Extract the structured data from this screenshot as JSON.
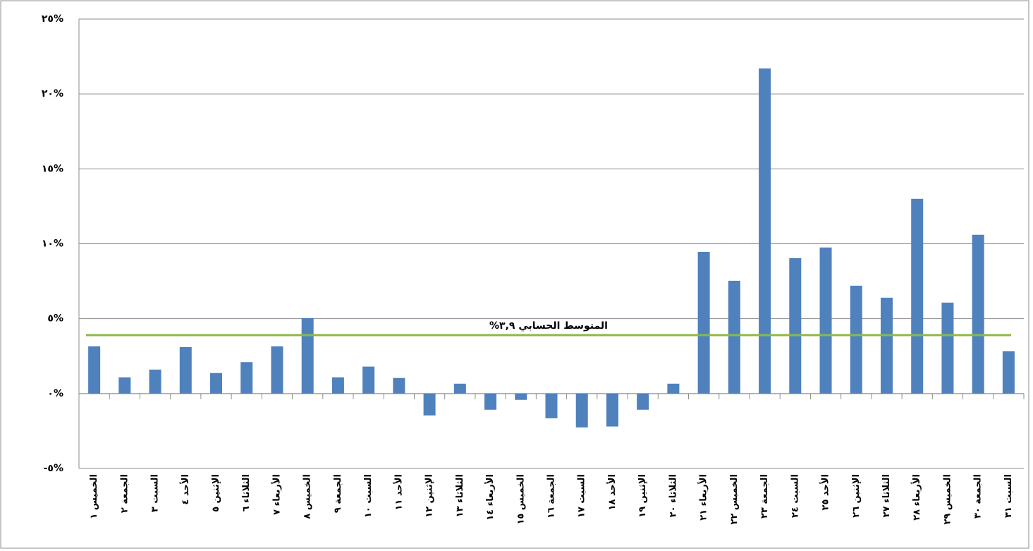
{
  "chart_data": {
    "type": "bar",
    "categories": [
      "الخميس ١",
      "الجمعة ٢",
      "السبت ٣",
      "الأحد ٤",
      "الإثنين ٥",
      "الثلاثاء ٦",
      "الأربعاء ٧",
      "الخميس ٨",
      "الجمعة ٩",
      "السبت ١٠",
      "الأحد ١١",
      "الإثنين ١٢",
      "الثلاثاء ١٣",
      "الأربعاء ١٤",
      "الخميس ١٥",
      "الجمعة ١٦",
      "السبت ١٧",
      "الأحد ١٨",
      "الإثنين ١٩",
      "الثلاثاء ٢٠",
      "الأربعاء ٢١",
      "الخميس ٢٢",
      "الجمعة ٢٣",
      "السبت ٢٤",
      "الأحد ٢٥",
      "الإثنين ٢٦",
      "الثلاثاء ٢٧",
      "الأربعاء ٢٨",
      "الخميس ٢٩",
      "الجمعة ٣٠",
      "السبت ٣١"
    ],
    "values": [
      3.15,
      1.08,
      1.6,
      3.1,
      1.37,
      2.1,
      3.15,
      5.04,
      1.08,
      1.8,
      1.04,
      -1.46,
      0.66,
      -1.08,
      -0.42,
      -1.65,
      -2.26,
      -2.2,
      -1.08,
      0.66,
      9.46,
      7.53,
      21.7,
      9.04,
      9.75,
      7.2,
      6.4,
      13.0,
      6.07,
      10.6,
      2.82
    ],
    "color": "#4f81bd",
    "ylim": [
      -5,
      25
    ],
    "yticks": [
      {
        "value": -5,
        "label": "-٥%"
      },
      {
        "value": 0,
        "label": "٠%"
      },
      {
        "value": 5,
        "label": "٥%"
      },
      {
        "value": 10,
        "label": "١٠%"
      },
      {
        "value": 15,
        "label": "١٥%"
      },
      {
        "value": 20,
        "label": "٢٠%"
      },
      {
        "value": 25,
        "label": "٢٥%"
      }
    ],
    "grid": true,
    "mean_line": {
      "value": 3.9,
      "label": "المتوسط الحسابي ٣,٩%",
      "color": "#8cb946"
    }
  }
}
